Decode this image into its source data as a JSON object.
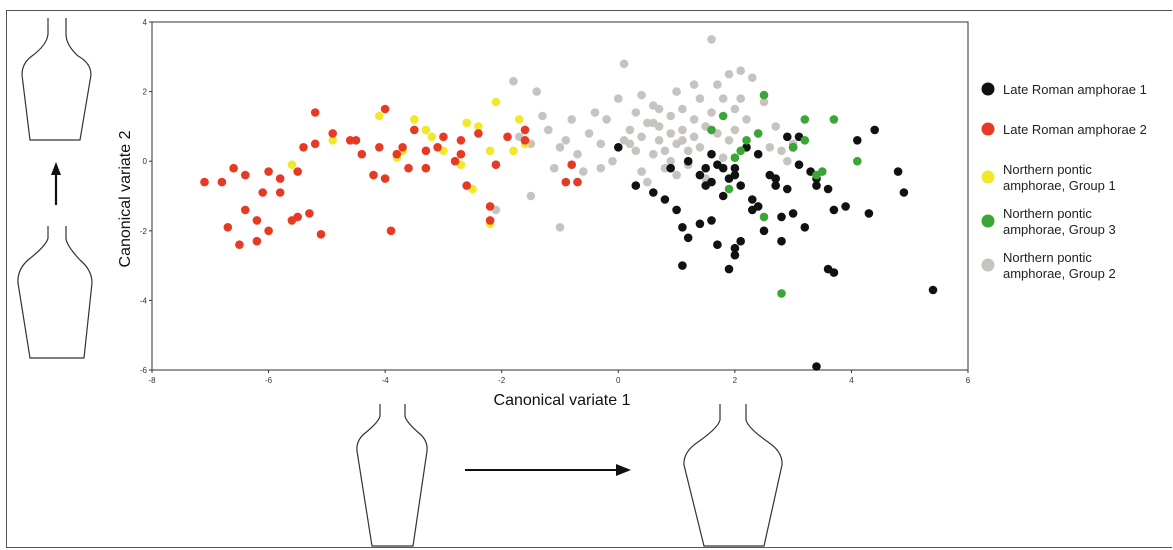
{
  "chart_data": {
    "type": "scatter",
    "title": "",
    "xlabel": "Canonical variate 1",
    "ylabel": "Canonical variate 2",
    "xlim": [
      -8,
      6
    ],
    "ylim": [
      -6,
      4
    ],
    "xticks": [
      "-8",
      "-6",
      "-4",
      "-2",
      "0",
      "2",
      "4",
      "6"
    ],
    "yticks": [
      "-6",
      "-4",
      "-2",
      "0",
      "2",
      "4"
    ],
    "legend_position": "right",
    "series": [
      {
        "name": "Late Roman amphorae 1",
        "color": "#111111",
        "legend_lines": [
          "Late Roman amphorae 1"
        ],
        "points": [
          [
            0,
            0.4
          ],
          [
            0.3,
            -0.7
          ],
          [
            0.6,
            -0.9
          ],
          [
            0.8,
            -1.1
          ],
          [
            0.9,
            -0.2
          ],
          [
            1.0,
            -1.4
          ],
          [
            1.1,
            -1.9
          ],
          [
            1.1,
            -3.0
          ],
          [
            1.2,
            -2.2
          ],
          [
            1.2,
            0.0
          ],
          [
            1.4,
            -0.4
          ],
          [
            1.4,
            -1.8
          ],
          [
            1.5,
            -0.7
          ],
          [
            1.5,
            -0.2
          ],
          [
            1.6,
            -1.7
          ],
          [
            1.6,
            -0.6
          ],
          [
            1.6,
            0.2
          ],
          [
            1.7,
            -2.4
          ],
          [
            1.7,
            -0.1
          ],
          [
            1.8,
            -1.0
          ],
          [
            1.8,
            -0.2
          ],
          [
            1.9,
            -3.1
          ],
          [
            1.9,
            -0.5
          ],
          [
            2.0,
            -2.7
          ],
          [
            2.0,
            -0.2
          ],
          [
            2.0,
            -2.5
          ],
          [
            2.1,
            -2.3
          ],
          [
            2.1,
            -0.7
          ],
          [
            2.2,
            0.4
          ],
          [
            2.3,
            -1.1
          ],
          [
            2.3,
            -1.4
          ],
          [
            2.4,
            -1.3
          ],
          [
            2.4,
            0.2
          ],
          [
            2.5,
            -2.0
          ],
          [
            2.6,
            -0.4
          ],
          [
            2.7,
            -0.7
          ],
          [
            2.7,
            -0.5
          ],
          [
            2.8,
            -1.6
          ],
          [
            2.8,
            -2.3
          ],
          [
            2.9,
            0.7
          ],
          [
            2.9,
            -0.8
          ],
          [
            3.0,
            0.4
          ],
          [
            3.0,
            -1.5
          ],
          [
            3.1,
            -0.1
          ],
          [
            3.2,
            -1.9
          ],
          [
            3.3,
            -0.3
          ],
          [
            3.4,
            -0.7
          ],
          [
            3.4,
            -0.5
          ],
          [
            3.4,
            -5.9
          ],
          [
            3.6,
            -3.1
          ],
          [
            3.6,
            -0.8
          ],
          [
            3.7,
            -1.4
          ],
          [
            3.7,
            -3.2
          ],
          [
            3.9,
            -1.3
          ],
          [
            4.1,
            0.6
          ],
          [
            4.3,
            -1.5
          ],
          [
            4.4,
            0.9
          ],
          [
            4.8,
            -0.3
          ],
          [
            4.9,
            -0.9
          ],
          [
            5.4,
            -3.7
          ],
          [
            3.1,
            0.7
          ],
          [
            2.0,
            -0.4
          ]
        ]
      },
      {
        "name": "Late Roman amphorae 2",
        "color": "#e63a24",
        "legend_lines": [
          "Late Roman amphorae 2"
        ],
        "points": [
          [
            -7.1,
            -0.6
          ],
          [
            -6.8,
            -0.6
          ],
          [
            -6.7,
            -1.9
          ],
          [
            -6.6,
            -0.2
          ],
          [
            -6.5,
            -2.4
          ],
          [
            -6.4,
            -0.4
          ],
          [
            -6.4,
            -1.4
          ],
          [
            -6.2,
            -2.3
          ],
          [
            -6.2,
            -1.7
          ],
          [
            -6.1,
            -0.9
          ],
          [
            -6.0,
            -0.3
          ],
          [
            -6.0,
            -2.0
          ],
          [
            -5.8,
            -0.5
          ],
          [
            -5.8,
            -0.9
          ],
          [
            -5.6,
            -1.7
          ],
          [
            -5.5,
            -1.6
          ],
          [
            -5.5,
            -0.3
          ],
          [
            -5.4,
            0.4
          ],
          [
            -5.3,
            -1.5
          ],
          [
            -5.2,
            1.4
          ],
          [
            -5.2,
            0.5
          ],
          [
            -5.1,
            -2.1
          ],
          [
            -4.9,
            0.8
          ],
          [
            -4.6,
            0.6
          ],
          [
            -4.5,
            0.6
          ],
          [
            -4.4,
            0.2
          ],
          [
            -4.2,
            -0.4
          ],
          [
            -4.1,
            0.4
          ],
          [
            -4.0,
            -0.5
          ],
          [
            -4.0,
            1.5
          ],
          [
            -3.9,
            -2.0
          ],
          [
            -3.8,
            0.2
          ],
          [
            -3.7,
            0.4
          ],
          [
            -3.6,
            -0.2
          ],
          [
            -3.5,
            0.9
          ],
          [
            -3.3,
            0.3
          ],
          [
            -3.3,
            -0.2
          ],
          [
            -3.1,
            0.4
          ],
          [
            -3.0,
            0.7
          ],
          [
            -2.8,
            0.0
          ],
          [
            -2.7,
            0.2
          ],
          [
            -2.7,
            0.6
          ],
          [
            -2.6,
            -0.7
          ],
          [
            -2.4,
            0.8
          ],
          [
            -2.2,
            -1.3
          ],
          [
            -2.2,
            -1.7
          ],
          [
            -2.1,
            -0.1
          ],
          [
            -1.9,
            0.7
          ],
          [
            -1.6,
            0.9
          ],
          [
            -1.6,
            0.6
          ],
          [
            -0.9,
            -0.6
          ],
          [
            -0.8,
            -0.1
          ],
          [
            -0.7,
            -0.6
          ]
        ]
      },
      {
        "name": "Northern pontic amphorae, Group 1",
        "color": "#f2e82a",
        "legend_lines": [
          "Northern pontic",
          "amphorae, Group 1"
        ],
        "points": [
          [
            -5.6,
            -0.1
          ],
          [
            -4.9,
            0.6
          ],
          [
            -4.1,
            1.3
          ],
          [
            -3.8,
            0.1
          ],
          [
            -3.7,
            0.3
          ],
          [
            -3.5,
            1.2
          ],
          [
            -3.3,
            0.9
          ],
          [
            -3.2,
            0.7
          ],
          [
            -3.0,
            0.3
          ],
          [
            -2.7,
            0.2
          ],
          [
            -2.7,
            -0.1
          ],
          [
            -2.6,
            1.1
          ],
          [
            -2.5,
            -0.8
          ],
          [
            -2.4,
            1.0
          ],
          [
            -2.2,
            0.3
          ],
          [
            -2.2,
            -1.8
          ],
          [
            -2.1,
            1.7
          ],
          [
            -1.8,
            0.3
          ],
          [
            -1.7,
            1.2
          ],
          [
            -1.6,
            0.5
          ]
        ]
      },
      {
        "name": "Northern pontic amphorae, Group 3",
        "color": "#3aa635",
        "legend_lines": [
          "Northern pontic",
          "amphorae, Group 3"
        ],
        "points": [
          [
            1.6,
            0.9
          ],
          [
            1.8,
            1.3
          ],
          [
            1.9,
            -0.8
          ],
          [
            2.1,
            0.3
          ],
          [
            2.2,
            0.6
          ],
          [
            2.5,
            1.9
          ],
          [
            2.5,
            -1.6
          ],
          [
            2.8,
            -3.8
          ],
          [
            3.0,
            0.4
          ],
          [
            3.2,
            1.2
          ],
          [
            3.2,
            0.6
          ],
          [
            3.5,
            -0.3
          ],
          [
            3.7,
            1.2
          ],
          [
            4.1,
            0.0
          ],
          [
            2.0,
            0.1
          ],
          [
            2.4,
            0.8
          ],
          [
            3.4,
            -0.4
          ]
        ]
      },
      {
        "name": "Northern pontic amphorae, Group 2",
        "color": "#c7c4c0",
        "legend_lines": [
          "Northern pontic",
          "amphorae, Group 2"
        ],
        "points": [
          [
            -2.1,
            -1.4
          ],
          [
            -1.8,
            2.3
          ],
          [
            -1.7,
            0.7
          ],
          [
            -1.5,
            0.5
          ],
          [
            -1.5,
            -1.0
          ],
          [
            -1.4,
            2.0
          ],
          [
            -1.3,
            1.3
          ],
          [
            -1.2,
            0.9
          ],
          [
            -1.1,
            -0.2
          ],
          [
            -1.0,
            0.4
          ],
          [
            -1.0,
            -1.9
          ],
          [
            -0.9,
            0.6
          ],
          [
            -0.8,
            1.2
          ],
          [
            -0.7,
            0.2
          ],
          [
            -0.6,
            -0.3
          ],
          [
            -0.5,
            0.8
          ],
          [
            -0.4,
            1.4
          ],
          [
            -0.3,
            0.5
          ],
          [
            -0.3,
            -0.2
          ],
          [
            -0.2,
            1.2
          ],
          [
            -0.1,
            0.0
          ],
          [
            0.0,
            1.8
          ],
          [
            0.1,
            0.6
          ],
          [
            0.1,
            2.8
          ],
          [
            0.2,
            0.9
          ],
          [
            0.3,
            0.3
          ],
          [
            0.3,
            1.4
          ],
          [
            0.4,
            -0.3
          ],
          [
            0.4,
            0.7
          ],
          [
            0.5,
            1.1
          ],
          [
            0.5,
            -0.6
          ],
          [
            0.6,
            1.6
          ],
          [
            0.6,
            0.2
          ],
          [
            0.7,
            0.6
          ],
          [
            0.7,
            1.0
          ],
          [
            0.8,
            0.3
          ],
          [
            0.8,
            -0.2
          ],
          [
            0.9,
            1.3
          ],
          [
            0.9,
            0.8
          ],
          [
            1.0,
            2.0
          ],
          [
            1.0,
            0.5
          ],
          [
            1.0,
            -0.4
          ],
          [
            1.1,
            1.5
          ],
          [
            1.1,
            0.9
          ],
          [
            1.2,
            0.3
          ],
          [
            1.2,
            -0.1
          ],
          [
            1.3,
            1.2
          ],
          [
            1.3,
            0.7
          ],
          [
            1.4,
            1.8
          ],
          [
            1.4,
            0.4
          ],
          [
            1.5,
            1.0
          ],
          [
            1.5,
            -0.5
          ],
          [
            1.6,
            1.4
          ],
          [
            1.6,
            3.5
          ],
          [
            1.7,
            0.8
          ],
          [
            1.7,
            2.2
          ],
          [
            1.8,
            0.1
          ],
          [
            1.8,
            1.8
          ],
          [
            1.9,
            0.6
          ],
          [
            1.9,
            2.5
          ],
          [
            2.0,
            1.5
          ],
          [
            2.0,
            0.9
          ],
          [
            2.1,
            1.8
          ],
          [
            2.1,
            2.6
          ],
          [
            2.2,
            1.2
          ],
          [
            2.3,
            2.4
          ],
          [
            2.4,
            0.8
          ],
          [
            2.5,
            1.7
          ],
          [
            2.6,
            0.4
          ],
          [
            2.7,
            1.0
          ],
          [
            2.8,
            0.3
          ],
          [
            2.9,
            0.0
          ],
          [
            3.0,
            0.5
          ],
          [
            0.4,
            1.9
          ],
          [
            0.6,
            1.1
          ],
          [
            0.9,
            0.0
          ],
          [
            1.3,
            2.2
          ],
          [
            1.1,
            0.6
          ],
          [
            0.7,
            1.5
          ],
          [
            0.2,
            0.5
          ]
        ]
      }
    ],
    "illustrations": [
      {
        "name": "vessel-shape-upper-left"
      },
      {
        "name": "vessel-shape-lower-left"
      },
      {
        "name": "vessel-shape-bottom-left"
      },
      {
        "name": "vessel-shape-bottom-right"
      }
    ]
  }
}
